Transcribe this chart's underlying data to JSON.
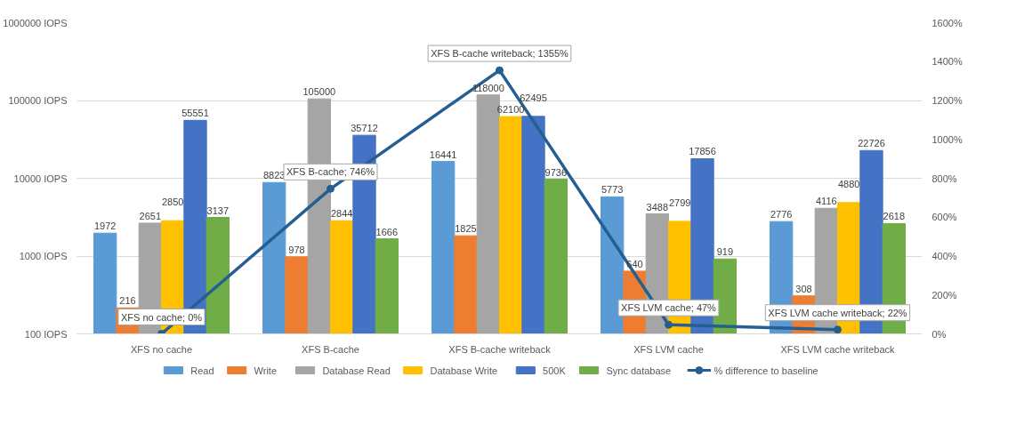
{
  "chart_data": {
    "type": "bar",
    "categories": [
      "XFS no cache",
      "XFS B-cache",
      "XFS B-cache writeback",
      "XFS LVM cache",
      "XFS LVM cache writeback"
    ],
    "series": [
      {
        "name": "Read",
        "color": "#5b9bd5",
        "values": [
          1972,
          8823,
          16441,
          5773,
          2776
        ]
      },
      {
        "name": "Write",
        "color": "#ed7d31",
        "values": [
          216,
          978,
          1825,
          640,
          308
        ]
      },
      {
        "name": "Database Read",
        "color": "#a5a5a5",
        "values": [
          2651,
          105000,
          118000,
          3488,
          4116
        ]
      },
      {
        "name": "Database Write",
        "color": "#ffc000",
        "values": [
          2850,
          2844,
          62100,
          2799,
          4880
        ]
      },
      {
        "name": "500K",
        "color": "#4472c4",
        "values": [
          55551,
          35712,
          62495,
          17856,
          22726
        ]
      },
      {
        "name": "Sync database",
        "color": "#70ad47",
        "values": [
          3137,
          1666,
          9736,
          919,
          2618
        ]
      },
      {
        "name": "% difference to baseline",
        "type": "line",
        "axis": "y2",
        "marker": "circle",
        "color": "#255e91",
        "values": [
          0,
          746,
          1355,
          47,
          22
        ],
        "value_labels": [
          "XFS no cache; 0%",
          "XFS B-cache; 746%",
          "XFS B-cache writeback; 1355%",
          "XFS LVM cache; 47%",
          "XFS LVM cache writeback; 22%"
        ]
      }
    ],
    "data_labels": true,
    "log": "y",
    "ylim": [
      100,
      1000000
    ],
    "yticks": [
      {
        "value": 100,
        "label": "100 IOPS"
      },
      {
        "value": 1000,
        "label": "1000 IOPS"
      },
      {
        "value": 10000,
        "label": "10000 IOPS"
      },
      {
        "value": 100000,
        "label": "100000 IOPS"
      },
      {
        "value": 1000000,
        "label": "1000000 IOPS"
      }
    ],
    "y2lim": [
      0,
      1600
    ],
    "y2ticks": [
      {
        "value": 0,
        "label": "0%"
      },
      {
        "value": 200,
        "label": "200%"
      },
      {
        "value": 400,
        "label": "400%"
      },
      {
        "value": 600,
        "label": "600%"
      },
      {
        "value": 800,
        "label": "800%"
      },
      {
        "value": 1000,
        "label": "1000%"
      },
      {
        "value": 1200,
        "label": "1200%"
      },
      {
        "value": 1400,
        "label": "1400%"
      },
      {
        "value": 1600,
        "label": "1600%"
      }
    ],
    "grid": "y",
    "legend": "bottom"
  }
}
